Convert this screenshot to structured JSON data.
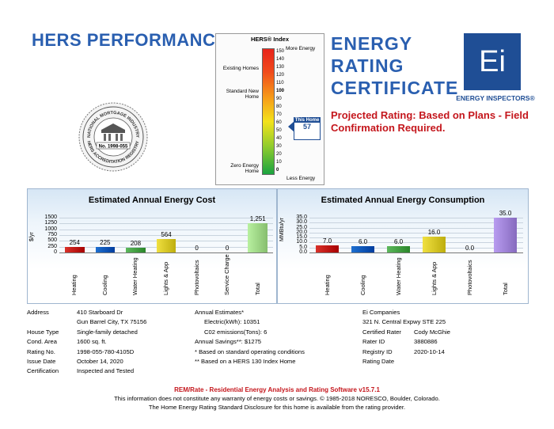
{
  "header": {
    "hers_title": "HERS PERFORMANCE",
    "cert_lines": [
      "ENERGY",
      "RATING",
      "CERTIFICATE"
    ],
    "projected": "Projected Rating: Based on Plans - Field Confirmation Required.",
    "logo_text": "Ei",
    "logo_caption": "ENERGY INSPECTORS®"
  },
  "seal": {
    "text_top": "NATIONAL MORTGAGE INDUSTRY",
    "text_bottom": "HERS ACCREDITATION REGISTRY",
    "number": "No. 1998-055"
  },
  "hers_index": {
    "title": "HERS® Index",
    "more": "More Energy",
    "less": "Less Energy",
    "existing": "Existing Homes",
    "standard": "Standard New Home",
    "zero": "Zero Energy Home",
    "scale": [
      "150",
      "140",
      "130",
      "120",
      "110",
      "100",
      "90",
      "80",
      "70",
      "60",
      "50",
      "40",
      "30",
      "20",
      "10",
      "0"
    ],
    "this_home_label": "This Home",
    "this_home_value": "57",
    "value": 57
  },
  "cost_chart": {
    "title": "Estimated Annual Energy Cost",
    "ylabel": "$/yr",
    "ticks": [
      "1500",
      "1250",
      "1000",
      "750",
      "500",
      "250",
      "0"
    ],
    "categories": [
      "Heating",
      "Cooling",
      "Water Heating",
      "Lights & App",
      "Photovoltaics",
      "Service Charge",
      "Total"
    ],
    "labels": [
      "254",
      "225",
      "208",
      "564",
      "0",
      "0",
      "1,251"
    ],
    "values": [
      254,
      225,
      208,
      564,
      0,
      0,
      1251
    ],
    "ymax": 1500
  },
  "consumption_chart": {
    "title": "Estimated Annual Energy Consumption",
    "ylabel": "MMBtu/yr",
    "ticks": [
      "35.0",
      "30.0",
      "25.0",
      "20.0",
      "15.0",
      "10.0",
      "5.0",
      "0.0"
    ],
    "categories": [
      "Heating",
      "Cooling",
      "Water Heating",
      "Lights & App",
      "Photovoltaics",
      "Total"
    ],
    "labels": [
      "7.0",
      "6.0",
      "6.0",
      "16.0",
      "0.0",
      "35.0"
    ],
    "values": [
      7.0,
      6.0,
      6.0,
      16.0,
      0.0,
      35.0
    ],
    "ymax": 35
  },
  "colors": {
    "heating": "#d9322b",
    "cooling": "#1e6fd0",
    "water": "#5cb85c",
    "lights": "#f0e040",
    "total": "#b8f0a0",
    "blue": "#2a5fb0"
  },
  "property": {
    "address_label": "Address",
    "address1": "410 Starboard Dr",
    "address2": "Gun Barrel City, TX 75156",
    "house_type_label": "House Type",
    "house_type": "Single-family detached",
    "area_label": "Cond. Area",
    "area": "1600 sq. ft.",
    "rating_no_label": "Rating No.",
    "rating_no": "1998-055-780-4105D",
    "issue_label": "Issue Date",
    "issue": "October 14, 2020",
    "cert_label": "Certification",
    "cert": "Inspected and Tested"
  },
  "estimates": {
    "title": "Annual Estimates*",
    "electric": "Electric(kWh):  10351",
    "co2": "C02 emissions(Tons): 6",
    "savings": "Annual Savings**:  $1275",
    "note1": "* Based on standard operating conditions",
    "note2": "** Based on a HERS 130 Index Home"
  },
  "rater": {
    "company": "Ei Companies",
    "address": "321 N. Central Expwy STE 225",
    "certified_label": "Certified Rater",
    "certified": "Cody McGhie",
    "rater_id_label": "Rater ID",
    "rater_id": "3880886",
    "registry_label": "Registry ID",
    "registry": "",
    "date_label": "Rating Date",
    "date": "2020-10-14"
  },
  "footer": {
    "line1": "REM/Rate - Residential Energy Analysis and Rating Software v15.7.1",
    "line2": "This information does not constitute any warranty of energy costs or savings. © 1985-2018 NORESCO, Boulder, Colorado.",
    "line3": "The Home Energy Rating Standard Disclosure for this home is available from the rating provider."
  }
}
